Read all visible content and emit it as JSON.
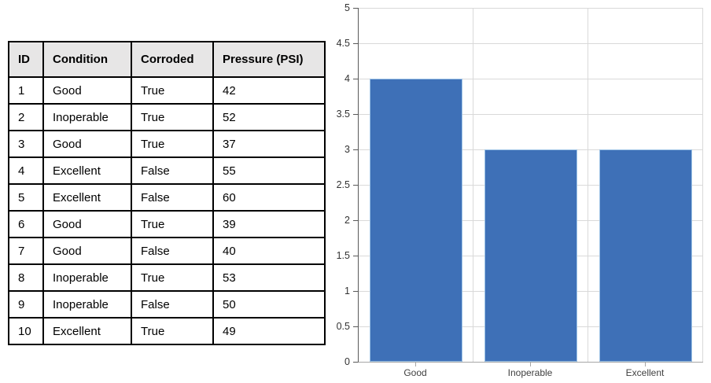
{
  "table": {
    "headers": [
      "ID",
      "Condition",
      "Corroded",
      "Pressure (PSI)"
    ],
    "rows": [
      [
        "1",
        "Good",
        "True",
        "42"
      ],
      [
        "2",
        "Inoperable",
        "True",
        "52"
      ],
      [
        "3",
        "Good",
        "True",
        "37"
      ],
      [
        "4",
        "Excellent",
        "False",
        "55"
      ],
      [
        "5",
        "Excellent",
        "False",
        "60"
      ],
      [
        "6",
        "Good",
        "True",
        "39"
      ],
      [
        "7",
        "Good",
        "False",
        "40"
      ],
      [
        "8",
        "Inoperable",
        "True",
        "53"
      ],
      [
        "9",
        "Inoperable",
        "False",
        "50"
      ],
      [
        "10",
        "Excellent",
        "True",
        "49"
      ]
    ],
    "header_bg": "#e7e6e6",
    "border_color": "#000000"
  },
  "chart_data": {
    "type": "bar",
    "categories": [
      "Good",
      "Inoperable",
      "Excellent"
    ],
    "values": [
      4,
      3,
      3
    ],
    "title": "",
    "xlabel": "",
    "ylabel": "",
    "ylim": [
      0,
      5
    ],
    "ytick_step": 0.5,
    "ytick_labels": [
      "5",
      "4.5",
      "4",
      "3.5",
      "3",
      "2.5",
      "2",
      "1.5",
      "1",
      "0.5",
      "0"
    ],
    "grid": true,
    "legend": false,
    "bar_color": "#3e70b7",
    "bar_border_color": "#9dc3e6",
    "gridline_color": "#d9d9d9",
    "y_axis_color": "#595959",
    "x_axis_color": "#a6a6a6",
    "tick_label_color": "#333333",
    "category_label_color": "#404040"
  }
}
